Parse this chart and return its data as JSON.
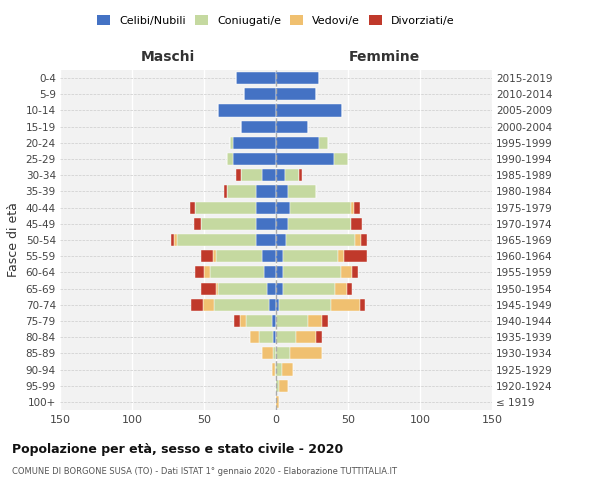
{
  "age_groups": [
    "100+",
    "95-99",
    "90-94",
    "85-89",
    "80-84",
    "75-79",
    "70-74",
    "65-69",
    "60-64",
    "55-59",
    "50-54",
    "45-49",
    "40-44",
    "35-39",
    "30-34",
    "25-29",
    "20-24",
    "15-19",
    "10-14",
    "5-9",
    "0-4"
  ],
  "anni_nascita": [
    "≤ 1919",
    "1920-1924",
    "1925-1929",
    "1930-1934",
    "1935-1939",
    "1940-1944",
    "1945-1949",
    "1950-1954",
    "1955-1959",
    "1960-1964",
    "1965-1969",
    "1970-1974",
    "1975-1979",
    "1980-1984",
    "1985-1989",
    "1990-1994",
    "1995-1999",
    "2000-2004",
    "2005-2009",
    "2010-2014",
    "2015-2019"
  ],
  "colors": {
    "celibi": "#4472C4",
    "coniugati": "#C5D9A0",
    "vedovi": "#F0C070",
    "divorziati": "#C0392B"
  },
  "males": {
    "celibi": [
      0,
      0,
      0,
      0,
      2,
      3,
      5,
      6,
      8,
      10,
      14,
      14,
      14,
      14,
      10,
      30,
      30,
      24,
      40,
      22,
      28
    ],
    "coniugati": [
      0,
      0,
      1,
      2,
      10,
      18,
      38,
      34,
      38,
      32,
      55,
      38,
      42,
      20,
      14,
      4,
      2,
      0,
      0,
      0,
      0
    ],
    "vedovi": [
      0,
      0,
      2,
      8,
      6,
      4,
      8,
      2,
      4,
      2,
      2,
      0,
      0,
      0,
      0,
      0,
      0,
      0,
      0,
      0,
      0
    ],
    "divorziati": [
      0,
      0,
      0,
      0,
      0,
      4,
      8,
      10,
      6,
      8,
      2,
      5,
      4,
      2,
      4,
      0,
      0,
      0,
      0,
      0,
      0
    ]
  },
  "females": {
    "celibi": [
      0,
      0,
      0,
      0,
      0,
      0,
      2,
      5,
      5,
      5,
      7,
      8,
      10,
      8,
      6,
      40,
      30,
      22,
      46,
      28,
      30
    ],
    "coniugati": [
      0,
      2,
      4,
      10,
      14,
      22,
      36,
      36,
      40,
      38,
      48,
      44,
      42,
      20,
      10,
      10,
      6,
      0,
      0,
      0,
      0
    ],
    "vedovi": [
      2,
      6,
      8,
      22,
      14,
      10,
      20,
      8,
      8,
      4,
      4,
      0,
      2,
      0,
      0,
      0,
      0,
      0,
      0,
      0,
      0
    ],
    "divorziati": [
      0,
      0,
      0,
      0,
      4,
      4,
      4,
      4,
      4,
      16,
      4,
      8,
      4,
      0,
      2,
      0,
      0,
      0,
      0,
      0,
      0
    ]
  },
  "title": "Popolazione per età, sesso e stato civile - 2020",
  "subtitle": "COMUNE DI BORGONE SUSA (TO) - Dati ISTAT 1° gennaio 2020 - Elaborazione TUTTITALIA.IT",
  "xlabel_left": "Maschi",
  "xlabel_right": "Femmine",
  "ylabel_left": "Fasce di età",
  "xlim": 150,
  "legend_labels": [
    "Celibi/Nubili",
    "Coniugati/e",
    "Vedovi/e",
    "Divorziati/e"
  ],
  "bg_color": "#FFFFFF",
  "plot_bg": "#F2F2F2",
  "grid_color": "#CCCCCC"
}
